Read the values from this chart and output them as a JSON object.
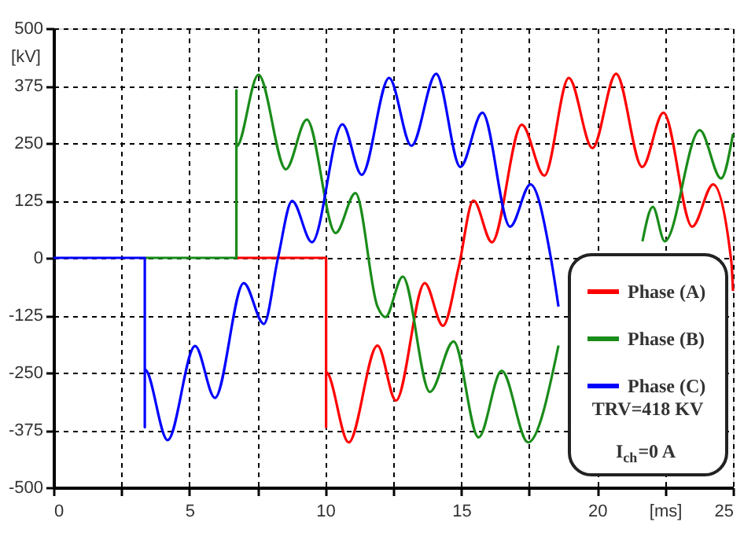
{
  "chart_data": {
    "type": "line",
    "ylabel": "[kV]",
    "xlim": [
      0,
      25
    ],
    "ylim": [
      -500,
      500
    ],
    "xticks": [
      0,
      {
        "value": 2.5,
        "label": null
      },
      5,
      {
        "value": 7.5,
        "label": null
      },
      10,
      {
        "value": 12.5,
        "label": null
      },
      15,
      {
        "value": 17.5,
        "label": null
      },
      20,
      {
        "value": 22.5,
        "label": "[ms]"
      },
      25
    ],
    "yticks": [
      -500,
      -375,
      -250,
      -125,
      0,
      125,
      250,
      375,
      500
    ],
    "grid": true,
    "legend": "bottom right",
    "line_style": "solid",
    "marker": "none",
    "series": [
      {
        "name": "Phase (A)",
        "color": "#ff0000",
        "x": [
          6.73,
          10.03,
          10.03,
          10.03,
          10.86,
          11.92,
          12.6,
          13.66,
          14.33,
          14.91,
          15.45,
          16.13,
          17.23,
          18.06,
          18.96,
          19.83,
          20.7,
          21.66,
          22.44,
          23.5,
          24.27,
          24.94,
          25
        ],
        "values": [
          0,
          0,
          -369,
          -249,
          -402,
          -191,
          -311,
          -55,
          -148,
          -20,
          125,
          34,
          290,
          179,
          392,
          239,
          401,
          198,
          316,
          68,
          160,
          -9,
          -72
        ]
      },
      {
        "name": "Phase (B)",
        "color": "#1a8c1a",
        "x": [
          3.36,
          6.73,
          6.73,
          6.73,
          7.54,
          8.55,
          9.32,
          10.38,
          11.11,
          11.92,
          12.21,
          12.85,
          13.85,
          14.72,
          15.64,
          16.49,
          17.46,
          18.58,
          20,
          21.67,
          22.05,
          22.49,
          23.78,
          24.56,
          25
        ],
        "values": [
          0,
          0,
          365,
          242,
          399,
          193,
          301,
          54,
          141,
          -106,
          -129,
          -41,
          -292,
          -182,
          -391,
          -246,
          -402,
          -191,
          null,
          36,
          111,
          36,
          278,
          173,
          270
        ]
      },
      {
        "name": "Phase (C)",
        "color": "#0000ff",
        "x": [
          0,
          3.36,
          3.36,
          3.36,
          4.2,
          5.21,
          5.94,
          7.0,
          7.74,
          8.26,
          8.78,
          9.51,
          10.63,
          11.34,
          12.35,
          13.17,
          14.08,
          14.97,
          15.78,
          16.8,
          17.55,
          18.29,
          18.58
        ],
        "values": [
          0,
          0,
          -369,
          -243,
          -397,
          -192,
          -305,
          -55,
          -144,
          0,
          124,
          34,
          291,
          181,
          392,
          244,
          401,
          198,
          316,
          68,
          160,
          3,
          -106
        ]
      }
    ],
    "annotations": [
      "TRV=418 KV",
      "I$_{ch}$=0 A"
    ]
  }
}
